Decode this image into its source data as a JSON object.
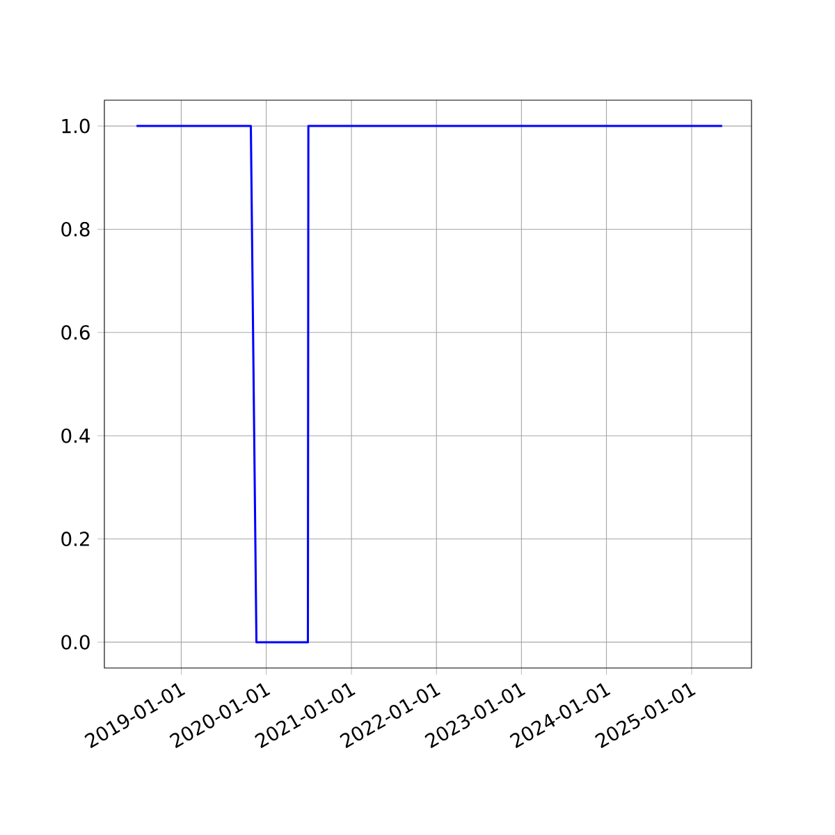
{
  "chart_data": {
    "type": "line",
    "color": "#0000ff",
    "grid": true,
    "x": [
      "2018-06-23",
      "2019-10-27",
      "2019-11-20",
      "2020-06-28",
      "2020-06-30",
      "2025-05-12"
    ],
    "values": [
      1,
      1,
      0,
      0,
      1,
      1
    ],
    "xlim": [
      "2018-02-05",
      "2025-09-15"
    ],
    "xticks": [
      "2019-01-01",
      "2020-01-01",
      "2021-01-01",
      "2022-01-01",
      "2023-01-01",
      "2024-01-01",
      "2025-01-01"
    ],
    "ylim": [
      -0.05,
      1.05
    ],
    "yticks": [
      {
        "value": 0,
        "label": "0.0"
      },
      {
        "value": 0.2,
        "label": "0.2"
      },
      {
        "value": 0.4,
        "label": "0.4"
      },
      {
        "value": 0.6,
        "label": "0.6"
      },
      {
        "value": 0.8,
        "label": "0.8"
      },
      {
        "value": 1,
        "label": "1.0"
      }
    ]
  }
}
